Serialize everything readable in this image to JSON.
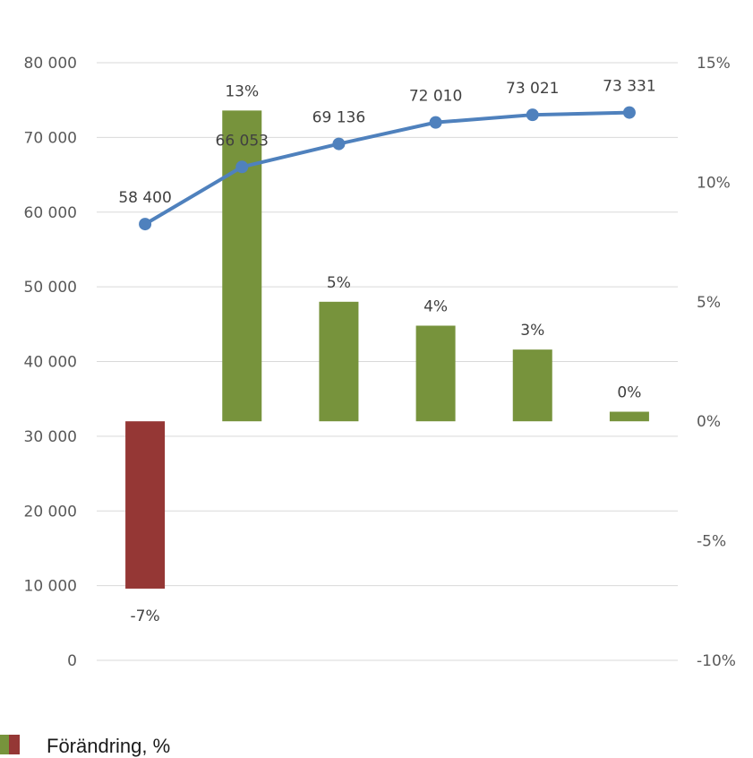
{
  "chart_data": {
    "type": "bar+line",
    "categories": [
      "",
      "",
      "",
      "",
      "",
      ""
    ],
    "line_series": {
      "axis": "left",
      "values": [
        58400,
        66053,
        69136,
        72010,
        73021,
        73331
      ],
      "labels": [
        "58 400",
        "66 053",
        "69 136",
        "72 010",
        "73 021",
        "73 331"
      ],
      "color": "#4f81bd"
    },
    "bar_series": {
      "name": "Förändring, %",
      "axis": "right",
      "values": [
        -7,
        13,
        5,
        4,
        3,
        0.4
      ],
      "labels": [
        "-7%",
        "13%",
        "5%",
        "4%",
        "3%",
        "0%"
      ],
      "positive_color": "#77933c",
      "negative_color": "#953735"
    },
    "left_axis": {
      "ylim": [
        0,
        80000
      ],
      "ticks": [
        0,
        10000,
        20000,
        30000,
        40000,
        50000,
        60000,
        70000,
        80000
      ],
      "tick_labels": [
        "0",
        "10 000",
        "20 000",
        "30 000",
        "40 000",
        "50 000",
        "60 000",
        "70 000",
        "80 000"
      ]
    },
    "right_axis": {
      "ylim": [
        -10,
        15
      ],
      "ticks": [
        -10,
        -5,
        0,
        5,
        10,
        15
      ],
      "tick_labels": [
        "-10%",
        "-5%",
        "0%",
        "5%",
        "10%",
        "15%"
      ]
    },
    "grid": true,
    "legend": {
      "position": "bottom-left",
      "label": "Förändring, %",
      "swatch_colors": [
        "#77933c",
        "#953735"
      ]
    }
  }
}
